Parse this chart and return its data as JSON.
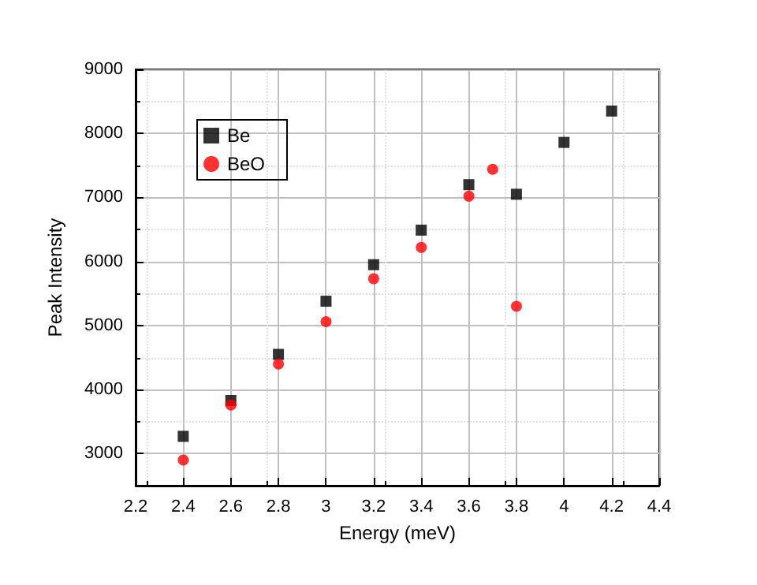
{
  "chart_data": {
    "type": "scatter",
    "xlabel": "Energy (meV)",
    "ylabel": "Peak Intensity",
    "xlim": [
      2.2,
      4.4
    ],
    "xticks": [
      2.2,
      2.4,
      2.6,
      2.8,
      3.0,
      3.2,
      3.4,
      3.6,
      3.8,
      4.0,
      4.2,
      4.4
    ],
    "ylim": [
      2500,
      9000
    ],
    "yticks": [
      3000,
      4000,
      5000,
      6000,
      7000,
      8000,
      9000
    ],
    "grid": true,
    "legend": "top left",
    "series": [
      {
        "name": "Be",
        "color": "#000000",
        "marker": "square",
        "x": [
          2.4,
          2.6,
          2.8,
          3.0,
          3.2,
          3.4,
          3.6,
          3.8,
          4.0,
          4.2
        ],
        "values": [
          3270,
          3830,
          4550,
          5380,
          5950,
          6490,
          7200,
          7050,
          7860,
          8350
        ]
      },
      {
        "name": "BeO",
        "color": "#ff0000",
        "marker": "circle",
        "x": [
          2.4,
          2.6,
          2.8,
          3.0,
          3.2,
          3.4,
          3.6,
          3.7,
          3.8
        ],
        "values": [
          2900,
          3760,
          4400,
          5060,
          5730,
          6220,
          7020,
          7440,
          5300
        ]
      }
    ]
  }
}
